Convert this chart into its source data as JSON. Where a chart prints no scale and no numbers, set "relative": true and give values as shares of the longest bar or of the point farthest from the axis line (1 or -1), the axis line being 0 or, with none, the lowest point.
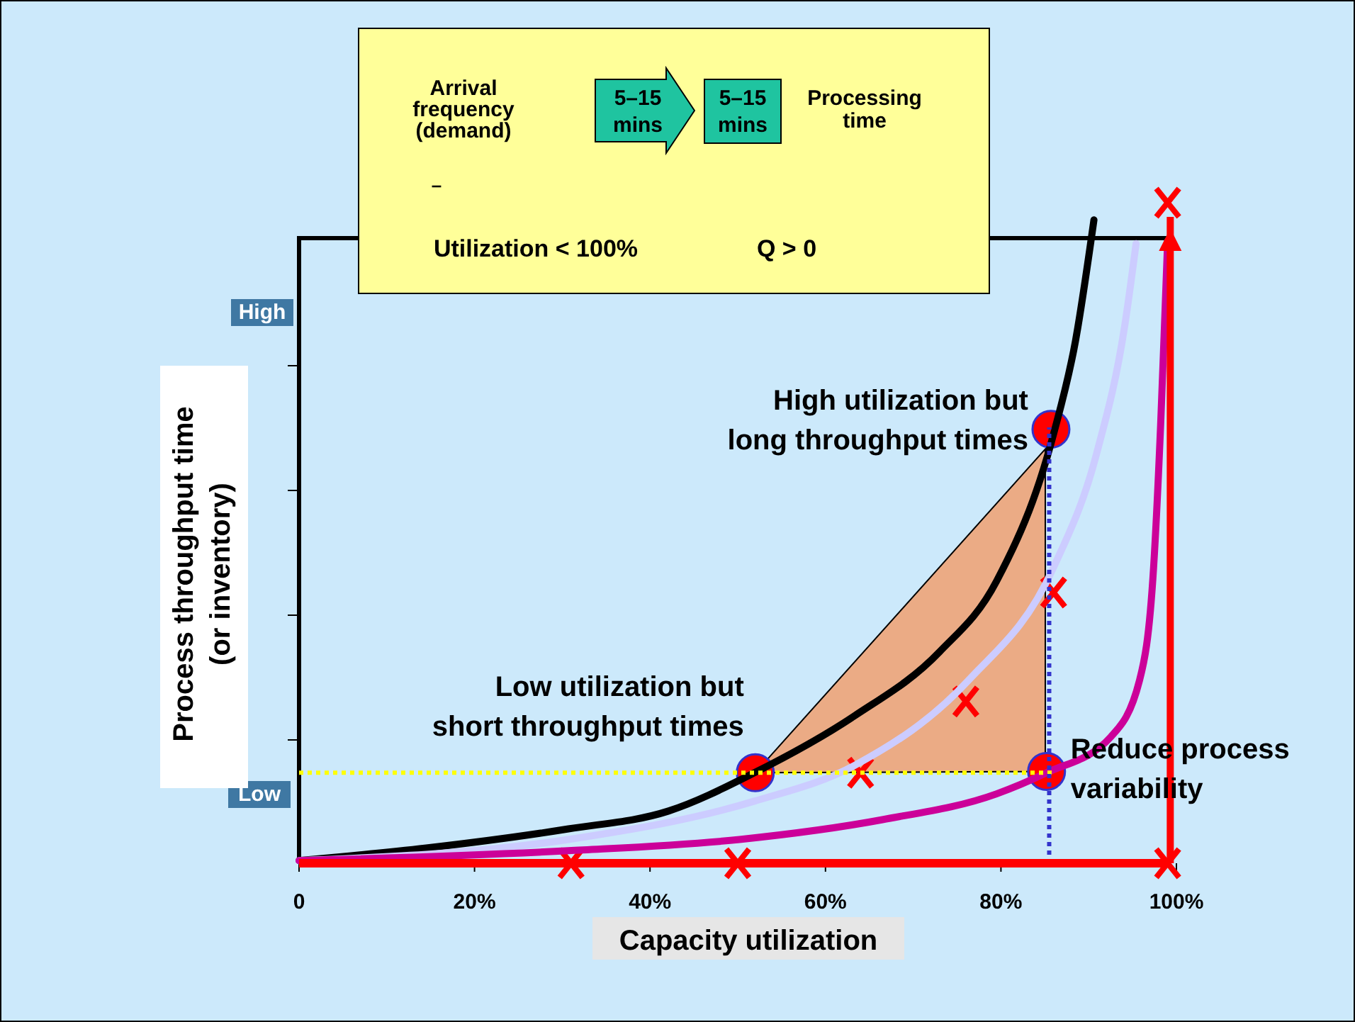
{
  "chart_data": {
    "type": "line",
    "relative": true,
    "xlabel": "Capacity utilization",
    "ylabel": "Process throughput time (or inventory)",
    "xlim": [
      0,
      100
    ],
    "xticks": [
      0,
      {
        "value": 20,
        "label": "20%"
      },
      {
        "value": 40,
        "label": "40%"
      },
      {
        "value": 60,
        "label": "60%"
      },
      {
        "value": 80,
        "label": "80%"
      },
      {
        "value": 100,
        "label": "100%"
      }
    ],
    "series": [
      {
        "color": "#000000",
        "x": [
          0,
          14.5,
          30.7,
          42.1,
          51.9,
          63.3,
          73,
          79.5,
          86,
          88.5,
          90.6
        ],
        "values": [
          0.004,
          0.023,
          0.052,
          0.079,
          0.137,
          0.223,
          0.32,
          0.427,
          0.65,
          0.791,
          0.974
        ]
      },
      {
        "color": "#ccccff",
        "x": [
          0,
          30.7,
          51.9,
          63.3,
          76.3,
          86,
          90.9,
          94.1,
          95.4
        ],
        "values": [
          0.004,
          0.036,
          0.094,
          0.148,
          0.277,
          0.448,
          0.62,
          0.813,
          0.938
        ]
      },
      {
        "color": "#cc0099",
        "x": [
          0,
          30.7,
          50.2,
          66.5,
          79.5,
          85.2,
          92.5,
          95.8,
          97.4,
          98.2,
          98.7,
          99
        ],
        "values": [
          0.004,
          0.019,
          0.036,
          0.066,
          0.105,
          0.137,
          0.191,
          0.277,
          0.448,
          0.663,
          0.835,
          0.942
        ]
      },
      {
        "type": "scatter",
        "marker": "circle",
        "color": "#ff0000",
        "x": [
          52,
          85.7,
          85.2
        ],
        "values": [
          0.137,
          0.657,
          0.139
        ]
      },
      {
        "type": "scatter",
        "marker": "cross",
        "color": "#ff0000",
        "x": [
          31,
          50,
          99,
          99,
          64,
          76,
          86
        ],
        "values": [
          0,
          0,
          0,
          1,
          0.137,
          0.245,
          0.41
        ]
      }
    ],
    "ref_lines": [
      {
        "axis": "y",
        "value": 0.137,
        "color": "#ffff00",
        "line_style": "dotted"
      },
      {
        "axis": "x",
        "value": 85.5,
        "color": "#3333cc",
        "line_style": "dotted"
      },
      {
        "axis": "x",
        "value": 99.3,
        "color": "#ff0000",
        "line_style": "solid"
      }
    ],
    "annotations": [
      "Arrival frequency (demand)",
      "5–15 mins",
      "5–15 mins",
      "Processing time",
      "–",
      "Utilization < 100%",
      "Q > 0",
      {
        "text": "High utilization but long throughput times",
        "x": 85.7,
        "y": 0.657
      },
      {
        "text": "Low utilization but short throughput times",
        "x": 52,
        "y": 0.137
      },
      {
        "text": "Reduce process variability",
        "x": 85.2,
        "y": 0.139
      },
      "High",
      "Low"
    ]
  }
}
